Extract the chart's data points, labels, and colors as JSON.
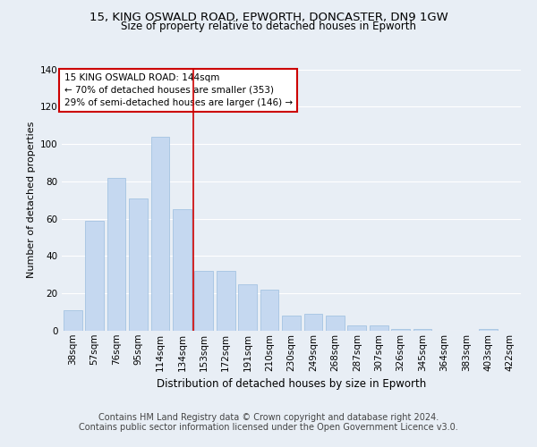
{
  "title1": "15, KING OSWALD ROAD, EPWORTH, DONCASTER, DN9 1GW",
  "title2": "Size of property relative to detached houses in Epworth",
  "xlabel": "Distribution of detached houses by size in Epworth",
  "ylabel": "Number of detached properties",
  "categories": [
    "38sqm",
    "57sqm",
    "76sqm",
    "95sqm",
    "114sqm",
    "134sqm",
    "153sqm",
    "172sqm",
    "191sqm",
    "210sqm",
    "230sqm",
    "249sqm",
    "268sqm",
    "287sqm",
    "307sqm",
    "326sqm",
    "345sqm",
    "364sqm",
    "383sqm",
    "403sqm",
    "422sqm"
  ],
  "values": [
    11,
    59,
    82,
    71,
    104,
    65,
    32,
    32,
    25,
    22,
    8,
    9,
    8,
    3,
    3,
    1,
    1,
    0,
    0,
    1,
    0
  ],
  "bar_color": "#c5d8f0",
  "bar_edge_color": "#9bbdde",
  "vline_x": 5.5,
  "vline_color": "#cc0000",
  "annotation_text": "15 KING OSWALD ROAD: 144sqm\n← 70% of detached houses are smaller (353)\n29% of semi-detached houses are larger (146) →",
  "annotation_box_color": "#ffffff",
  "annotation_box_edge_color": "#cc0000",
  "ylim": [
    0,
    140
  ],
  "yticks": [
    0,
    20,
    40,
    60,
    80,
    100,
    120,
    140
  ],
  "background_color": "#e8eef5",
  "axes_background": "#e8eef5",
  "grid_color": "#ffffff",
  "footer_text": "Contains HM Land Registry data © Crown copyright and database right 2024.\nContains public sector information licensed under the Open Government Licence v3.0.",
  "title1_fontsize": 9.5,
  "title2_fontsize": 8.5,
  "xlabel_fontsize": 8.5,
  "ylabel_fontsize": 8,
  "tick_fontsize": 7.5,
  "annotation_fontsize": 7.5,
  "footer_fontsize": 7
}
